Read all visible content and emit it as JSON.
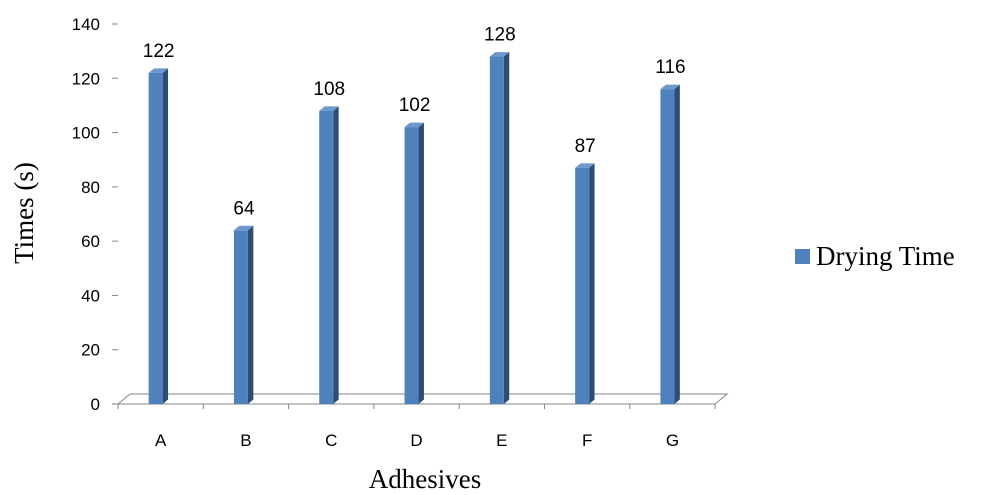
{
  "chart_data": {
    "type": "bar",
    "style": "3d-column",
    "categories": [
      "A",
      "B",
      "C",
      "D",
      "E",
      "F",
      "G"
    ],
    "series": [
      {
        "name": "Drying Time",
        "values": [
          122,
          64,
          108,
          102,
          128,
          87,
          116
        ]
      }
    ],
    "xlabel": "Adhesives",
    "ylabel": "Times (s)",
    "ylim": [
      0,
      140
    ],
    "yticks": [
      0,
      20,
      40,
      60,
      80,
      100,
      120,
      140
    ],
    "grid": false,
    "data_labels": true,
    "legend": "right",
    "colors": {
      "bar_front": "#4f81bd",
      "bar_side": "#2c4d75",
      "bar_top": "#6f97cb",
      "axis": "#868686"
    }
  }
}
